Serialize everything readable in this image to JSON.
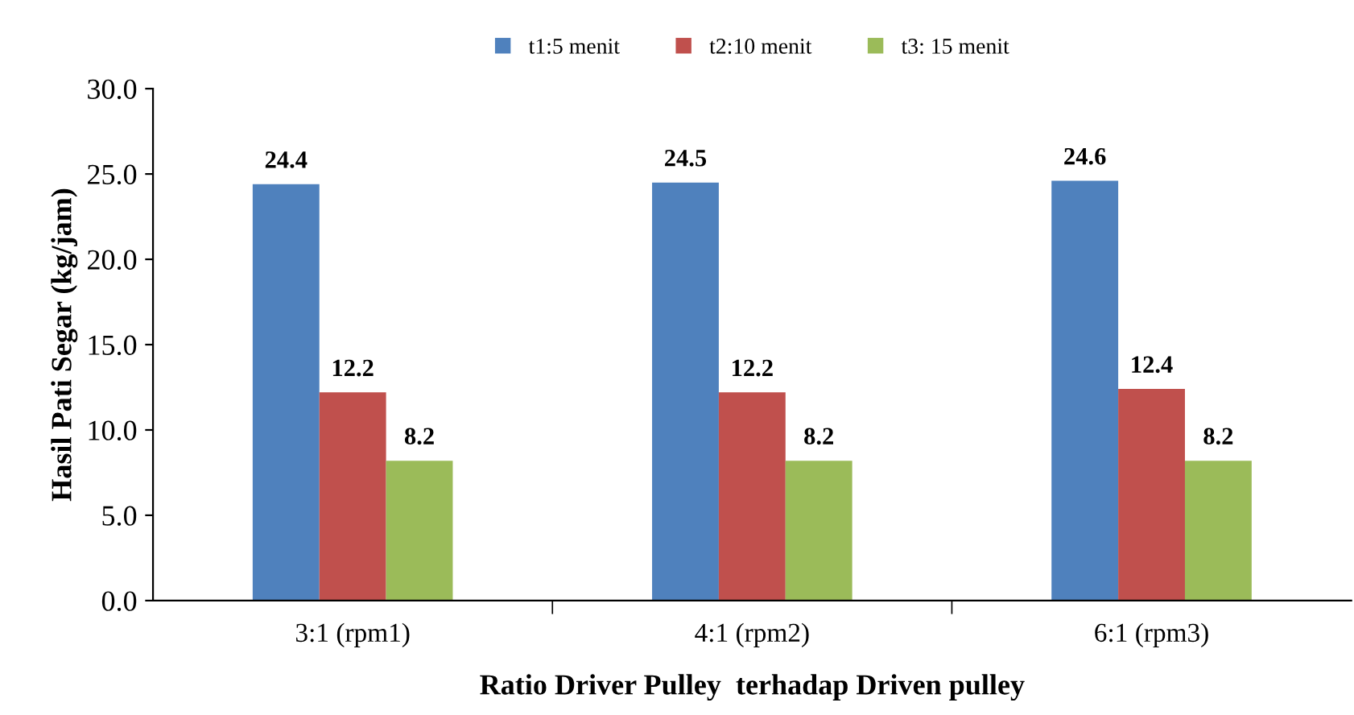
{
  "chart_data": {
    "type": "bar",
    "xlabel": "Ratio Driver Pulley  terhadap Driven pulley",
    "ylabel": "Hasil Pati Segar (kg/jam)",
    "categories": [
      "3:1 (rpm1)",
      "4:1 (rpm2)",
      "6:1 (rpm3)"
    ],
    "series": [
      {
        "name": "t1:5 menit",
        "color": "#4f81bd",
        "values": [
          24.4,
          24.5,
          24.6
        ]
      },
      {
        "name": "t2:10 menit",
        "color": "#c0504d",
        "values": [
          12.2,
          12.2,
          12.4
        ]
      },
      {
        "name": "t3: 15 menit",
        "color": "#9bbb59",
        "values": [
          8.2,
          8.2,
          8.2
        ]
      }
    ],
    "ylim": [
      0,
      30
    ],
    "yticks": [
      {
        "value": 0,
        "label": "0.0"
      },
      {
        "value": 5,
        "label": "5.0"
      },
      {
        "value": 10,
        "label": "10.0"
      },
      {
        "value": 15,
        "label": "15.0"
      },
      {
        "value": 20,
        "label": "20.0"
      },
      {
        "value": 25,
        "label": "25.0"
      },
      {
        "value": 30,
        "label": "30.0"
      }
    ],
    "data_labels": true,
    "grid": false,
    "legend": "top"
  }
}
